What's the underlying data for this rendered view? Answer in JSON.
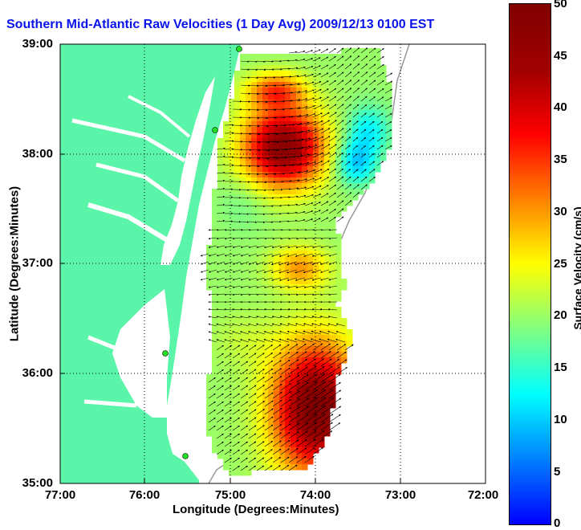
{
  "title": "Southern Mid-Atlantic Raw Velocities (1 Day Avg) 2009/12/13 0100 EST",
  "x_axis": {
    "label": "Longitude (Degrees:Minutes)",
    "ticks": [
      "77:00",
      "76:00",
      "75:00",
      "74:00",
      "73:00",
      "72:00"
    ],
    "range": [
      -77,
      -72
    ]
  },
  "y_axis": {
    "label": "Latitude (Degrees:Minutes)",
    "ticks": [
      "39:00",
      "38:00",
      "37:00",
      "36:00",
      "35:00"
    ],
    "range": [
      35,
      39
    ]
  },
  "colorbar": {
    "label": "Surface Velocity (cm/s)",
    "ticks": [
      "0",
      "5",
      "10",
      "15",
      "20",
      "25",
      "30",
      "35",
      "40",
      "45",
      "50"
    ],
    "range": [
      0,
      50
    ]
  },
  "colors": {
    "land": "#5af5a8",
    "water": "#ffffff",
    "title": "#0a14e8",
    "station": "#22dd22"
  },
  "grid": true
}
